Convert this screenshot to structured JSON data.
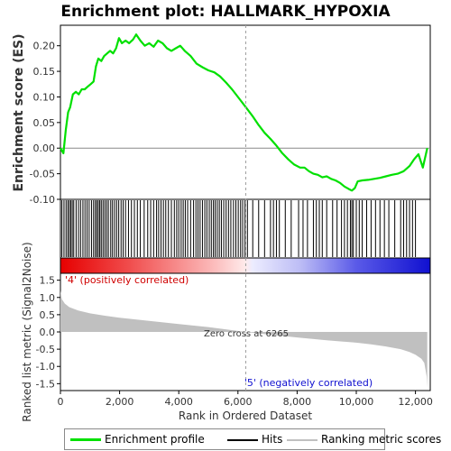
{
  "chart_data": [
    {
      "type": "line",
      "title": "Enrichment plot: HALLMARK_HYPOXIA",
      "ylabel": "Enrichment score (ES)",
      "xlim": [
        0,
        12500
      ],
      "ylim": [
        -0.1,
        0.24
      ],
      "yticks": [
        -0.1,
        -0.05,
        0.0,
        0.05,
        0.1,
        0.15,
        0.2
      ],
      "ytick_labels": [
        "-0.10",
        "-0.05",
        "0.00",
        "0.05",
        "0.10",
        "0.15",
        "0.20"
      ],
      "xticks": [
        0,
        2000,
        4000,
        6000,
        8000,
        10000,
        12000
      ],
      "grid": false,
      "series": [
        {
          "name": "Enrichment profile",
          "color": "#00e000",
          "x": [
            0,
            100,
            180,
            260,
            330,
            420,
            520,
            620,
            720,
            820,
            920,
            1020,
            1120,
            1200,
            1280,
            1380,
            1480,
            1580,
            1680,
            1780,
            1880,
            1980,
            2080,
            2200,
            2320,
            2450,
            2560,
            2700,
            2850,
            3000,
            3150,
            3300,
            3450,
            3600,
            3750,
            3900,
            4050,
            4200,
            4400,
            4600,
            4800,
            5000,
            5200,
            5400,
            5600,
            5800,
            6000,
            6265,
            6500,
            6700,
            6900,
            7100,
            7300,
            7500,
            7700,
            7900,
            8100,
            8250,
            8400,
            8550,
            8700,
            8850,
            9000,
            9150,
            9300,
            9450,
            9600,
            9750,
            9850,
            9950,
            10050,
            10200,
            10400,
            10600,
            10800,
            11000,
            11200,
            11400,
            11600,
            11800,
            11950,
            12100,
            12250,
            12400
          ],
          "values": [
            0.0,
            -0.01,
            0.035,
            0.07,
            0.08,
            0.105,
            0.11,
            0.105,
            0.115,
            0.115,
            0.12,
            0.125,
            0.13,
            0.16,
            0.175,
            0.17,
            0.18,
            0.185,
            0.19,
            0.185,
            0.195,
            0.215,
            0.205,
            0.21,
            0.205,
            0.212,
            0.222,
            0.21,
            0.2,
            0.205,
            0.198,
            0.21,
            0.205,
            0.195,
            0.19,
            0.195,
            0.2,
            0.19,
            0.18,
            0.165,
            0.158,
            0.152,
            0.148,
            0.14,
            0.128,
            0.115,
            0.1,
            0.08,
            0.062,
            0.045,
            0.03,
            0.018,
            0.005,
            -0.01,
            -0.022,
            -0.032,
            -0.038,
            -0.038,
            -0.045,
            -0.05,
            -0.052,
            -0.057,
            -0.055,
            -0.06,
            -0.063,
            -0.068,
            -0.075,
            -0.08,
            -0.083,
            -0.078,
            -0.065,
            -0.063,
            -0.062,
            -0.06,
            -0.058,
            -0.055,
            -0.052,
            -0.05,
            -0.045,
            -0.035,
            -0.022,
            -0.012,
            -0.038,
            0.0
          ]
        }
      ],
      "hits": [
        50,
        120,
        190,
        250,
        300,
        350,
        400,
        450,
        530,
        610,
        680,
        760,
        830,
        900,
        970,
        1050,
        1120,
        1180,
        1230,
        1280,
        1330,
        1380,
        1440,
        1500,
        1560,
        1620,
        1700,
        1760,
        1830,
        1900,
        1970,
        2050,
        2120,
        2200,
        2300,
        2400,
        2500,
        2600,
        2700,
        2830,
        2950,
        3050,
        3150,
        3250,
        3320,
        3400,
        3480,
        3560,
        3650,
        3750,
        3850,
        3930,
        4000,
        4080,
        4150,
        4220,
        4300,
        4400,
        4500,
        4580,
        4650,
        4720,
        4800,
        4880,
        4950,
        5030,
        5100,
        5170,
        5230,
        5300,
        5370,
        5440,
        5520,
        5600,
        5680,
        5760,
        5850,
        5930,
        6010,
        6090,
        6160,
        6240,
        6320,
        6500,
        6700,
        6900,
        7100,
        7200,
        7300,
        7400,
        7600,
        7800,
        8050,
        8200,
        8350,
        8550,
        8650,
        8750,
        8850,
        9000,
        9200,
        9350,
        9500,
        9600,
        9700,
        9800,
        9850,
        9900,
        10000,
        10100,
        10200,
        10350,
        10500,
        10650,
        10800,
        10950,
        11100,
        11300,
        11500,
        11600,
        11700,
        11800,
        11900,
        12000
      ]
    },
    {
      "type": "area",
      "ylabel": "Ranked list metric (Signal2Noise)",
      "xlabel": "Rank in Ordered Dataset",
      "xlim": [
        0,
        12500
      ],
      "ylim": [
        -1.7,
        1.7
      ],
      "yticks": [
        -1.5,
        -1.0,
        -0.5,
        0.0,
        0.5,
        1.0,
        1.5
      ],
      "ytick_labels": [
        "-1.5",
        "-1.0",
        "-0.5",
        "0.0",
        "0.5",
        "1.0",
        "1.5"
      ],
      "xticks": [
        0,
        2000,
        4000,
        6000,
        8000,
        10000,
        12000
      ],
      "xtick_labels": [
        "0",
        "2,000",
        "4,000",
        "6,000",
        "8,000",
        "10,000",
        "12,000"
      ],
      "series": [
        {
          "name": "Ranking metric scores",
          "color": "#c0c0c0",
          "x": [
            0,
            50,
            150,
            300,
            600,
            1000,
            1500,
            2000,
            3000,
            4000,
            5000,
            6265,
            7000,
            8000,
            9000,
            10000,
            10500,
            11000,
            11500,
            11800,
            12000,
            12200,
            12300,
            12380,
            12400
          ],
          "values": [
            1.2,
            0.95,
            0.82,
            0.72,
            0.62,
            0.54,
            0.47,
            0.41,
            0.32,
            0.23,
            0.14,
            0.0,
            -0.07,
            -0.16,
            -0.24,
            -0.31,
            -0.36,
            -0.42,
            -0.5,
            -0.58,
            -0.66,
            -0.78,
            -0.9,
            -1.3,
            -1.6
          ]
        }
      ],
      "zero_cross": 6265,
      "annotations": [
        "'4' (positively correlated)",
        "Zero cross at 6265",
        "'5' (negatively correlated)"
      ]
    }
  ],
  "legend": {
    "items": [
      {
        "label": "Enrichment profile",
        "color": "#00e000"
      },
      {
        "label": "Hits",
        "color": "#000000"
      },
      {
        "label": "Ranking metric scores",
        "color": "#c0c0c0"
      }
    ]
  }
}
